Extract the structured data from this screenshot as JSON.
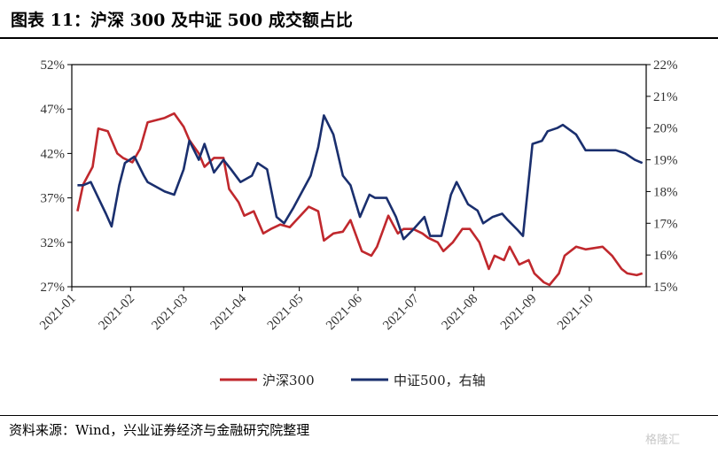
{
  "title": "图表 11：沪深 300 及中证 500 成交额占比",
  "source": "资料来源：Wind，兴业证券经济与金融研究院整理",
  "watermark": "格隆汇",
  "chart_data": {
    "type": "line",
    "x_ticks": [
      "2021-01",
      "2021-02",
      "2021-03",
      "2021-04",
      "2021-05",
      "2021-06",
      "2021-07",
      "2021-08",
      "2021-09",
      "2021-10"
    ],
    "y_left": {
      "ticks": [
        "27%",
        "32%",
        "37%",
        "42%",
        "47%",
        "52%"
      ],
      "range": [
        27,
        52
      ]
    },
    "y_right": {
      "ticks": [
        "15%",
        "16%",
        "17%",
        "18%",
        "19%",
        "20%",
        "21%",
        "22%"
      ],
      "range": [
        15,
        22
      ]
    },
    "legend_position": "bottom",
    "series": [
      {
        "name": "沪深300",
        "axis": "left",
        "color": "#c0282d",
        "x": [
          "2021-01-04",
          "2021-01-07",
          "2021-01-12",
          "2021-01-15",
          "2021-01-20",
          "2021-01-25",
          "2021-01-28",
          "2021-02-02",
          "2021-02-06",
          "2021-02-10",
          "2021-02-19",
          "2021-02-24",
          "2021-03-01",
          "2021-03-04",
          "2021-03-09",
          "2021-03-12",
          "2021-03-17",
          "2021-03-22",
          "2021-03-25",
          "2021-03-30",
          "2021-04-02",
          "2021-04-07",
          "2021-04-12",
          "2021-04-16",
          "2021-04-21",
          "2021-04-26",
          "2021-05-06",
          "2021-05-11",
          "2021-05-14",
          "2021-05-19",
          "2021-05-24",
          "2021-05-28",
          "2021-06-03",
          "2021-06-08",
          "2021-06-11",
          "2021-06-17",
          "2021-06-22",
          "2021-06-25",
          "2021-06-30",
          "2021-07-05",
          "2021-07-08",
          "2021-07-13",
          "2021-07-16",
          "2021-07-21",
          "2021-07-26",
          "2021-07-30",
          "2021-08-04",
          "2021-08-09",
          "2021-08-12",
          "2021-08-17",
          "2021-08-20",
          "2021-08-25",
          "2021-08-30",
          "2021-09-02",
          "2021-09-07",
          "2021-09-10",
          "2021-09-15",
          "2021-09-18",
          "2021-09-24",
          "2021-09-29",
          "2021-10-08",
          "2021-10-13",
          "2021-10-18",
          "2021-10-21",
          "2021-10-26",
          "2021-10-29"
        ],
        "values": [
          35.5,
          38.5,
          40.5,
          44.8,
          44.5,
          42,
          41.5,
          41,
          42.5,
          45.5,
          46,
          46.5,
          45,
          43.5,
          42,
          40.5,
          41.5,
          41.5,
          38,
          36.5,
          35,
          35.5,
          33,
          33.5,
          34,
          33.7,
          36,
          35.5,
          32.2,
          33,
          33.2,
          34.5,
          31,
          30.5,
          31.5,
          35,
          33,
          33.5,
          33.5,
          33,
          32.5,
          32,
          31,
          32,
          33.5,
          33.5,
          32,
          29,
          30.5,
          30,
          31.5,
          29.5,
          30,
          28.5,
          27.5,
          27.2,
          28.5,
          30.5,
          31.5,
          31.2,
          31.5,
          30.5,
          29,
          28.5,
          28.3,
          28.5
        ]
      },
      {
        "name": "中证500，右轴",
        "axis": "right",
        "color": "#1a2f6e",
        "x": [
          "2021-01-04",
          "2021-01-07",
          "2021-01-11",
          "2021-01-15",
          "2021-01-19",
          "2021-01-22",
          "2021-01-26",
          "2021-01-29",
          "2021-02-03",
          "2021-02-08",
          "2021-02-10",
          "2021-02-19",
          "2021-02-24",
          "2021-03-01",
          "2021-03-04",
          "2021-03-09",
          "2021-03-12",
          "2021-03-17",
          "2021-03-22",
          "2021-03-26",
          "2021-03-31",
          "2021-04-06",
          "2021-04-09",
          "2021-04-14",
          "2021-04-19",
          "2021-04-23",
          "2021-04-28",
          "2021-05-07",
          "2021-05-11",
          "2021-05-14",
          "2021-05-19",
          "2021-05-24",
          "2021-05-28",
          "2021-06-02",
          "2021-06-07",
          "2021-06-10",
          "2021-06-16",
          "2021-06-21",
          "2021-06-25",
          "2021-06-30",
          "2021-07-06",
          "2021-07-09",
          "2021-07-15",
          "2021-07-20",
          "2021-07-23",
          "2021-07-29",
          "2021-08-03",
          "2021-08-06",
          "2021-08-11",
          "2021-08-16",
          "2021-08-19",
          "2021-08-24",
          "2021-08-27",
          "2021-09-01",
          "2021-09-06",
          "2021-09-09",
          "2021-09-14",
          "2021-09-17",
          "2021-09-24",
          "2021-09-29",
          "2021-10-12",
          "2021-10-15",
          "2021-10-20",
          "2021-10-25",
          "2021-10-29"
        ],
        "values": [
          18.2,
          18.2,
          18.3,
          17.8,
          17.3,
          16.9,
          18.2,
          18.9,
          19.1,
          18.5,
          18.3,
          18.0,
          17.9,
          18.7,
          19.6,
          19.0,
          19.5,
          18.6,
          19,
          18.7,
          18.3,
          18.5,
          18.9,
          18.7,
          17.2,
          17,
          17.5,
          18.5,
          19.4,
          20.4,
          19.8,
          18.5,
          18.2,
          17.2,
          17.9,
          17.8,
          17.8,
          17.2,
          16.5,
          16.8,
          17.2,
          16.6,
          16.6,
          17.9,
          18.3,
          17.6,
          17.4,
          17,
          17.2,
          17.3,
          17.1,
          16.8,
          16.6,
          19.5,
          19.6,
          19.9,
          20,
          20.1,
          19.8,
          19.3,
          19.3,
          19.3,
          19.2,
          19.0,
          18.9
        ]
      }
    ]
  },
  "legend": {
    "series_1": "沪深300",
    "series_2": "中证500，右轴"
  }
}
